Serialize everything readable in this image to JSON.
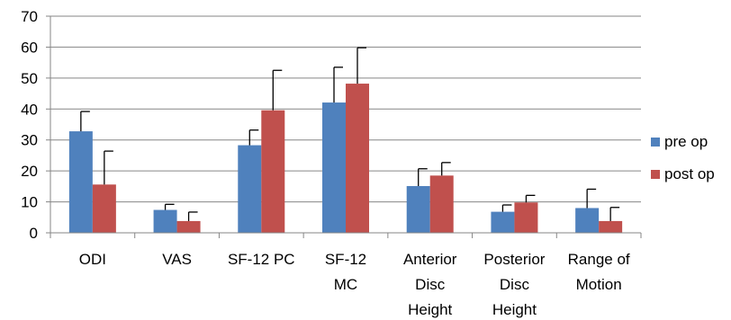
{
  "chart_data": {
    "type": "bar",
    "title": "",
    "xlabel": "",
    "ylabel": "",
    "ylim": [
      0,
      70
    ],
    "yticks": [
      0,
      10,
      20,
      30,
      40,
      50,
      60,
      70
    ],
    "grid": true,
    "legend_position": "right",
    "categories": [
      [
        "ODI"
      ],
      [
        "VAS"
      ],
      [
        "SF-12 PC"
      ],
      [
        "SF-12",
        "MC"
      ],
      [
        "Anterior",
        "Disc",
        "Height"
      ],
      [
        "Posterior",
        "Disc",
        "Height"
      ],
      [
        "Range of",
        "Motion"
      ]
    ],
    "series": [
      {
        "name": "pre op",
        "color": "#4F81BD",
        "values": [
          32.8,
          7.4,
          28.3,
          42.1,
          15.1,
          6.8,
          8.0
        ],
        "error": [
          6.4,
          1.8,
          4.9,
          11.4,
          5.6,
          2.2,
          6.1
        ]
      },
      {
        "name": "post op",
        "color": "#C0504D",
        "values": [
          15.6,
          3.8,
          39.6,
          48.2,
          18.5,
          9.8,
          3.8
        ],
        "error": [
          10.8,
          2.9,
          12.9,
          11.6,
          4.2,
          2.3,
          4.4
        ]
      }
    ]
  }
}
